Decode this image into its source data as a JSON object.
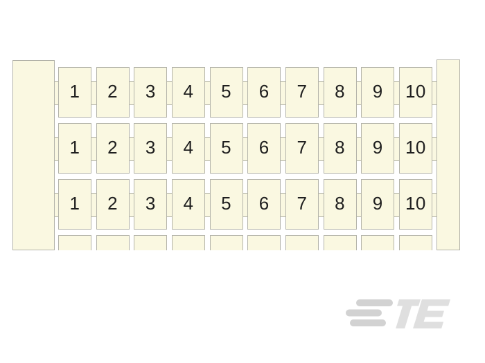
{
  "colors": {
    "background": "#ffffff",
    "card_fill": "#faf8e1",
    "card_border": "#b3b3a9",
    "digit": "#1f1f1f",
    "logo_bars": "#d2d2d2",
    "logo_letters": "#dfdfdf"
  },
  "marker_card": {
    "columns_per_row": 10,
    "rows": [
      {
        "labels": [
          "1",
          "2",
          "3",
          "4",
          "5",
          "6",
          "7",
          "8",
          "9",
          "10"
        ]
      },
      {
        "labels": [
          "1",
          "2",
          "3",
          "4",
          "5",
          "6",
          "7",
          "8",
          "9",
          "10"
        ]
      },
      {
        "labels": [
          "1",
          "2",
          "3",
          "4",
          "5",
          "6",
          "7",
          "8",
          "9",
          "10"
        ]
      },
      {
        "labels": [],
        "partial": true
      }
    ]
  },
  "logo": {
    "text": "TE"
  }
}
